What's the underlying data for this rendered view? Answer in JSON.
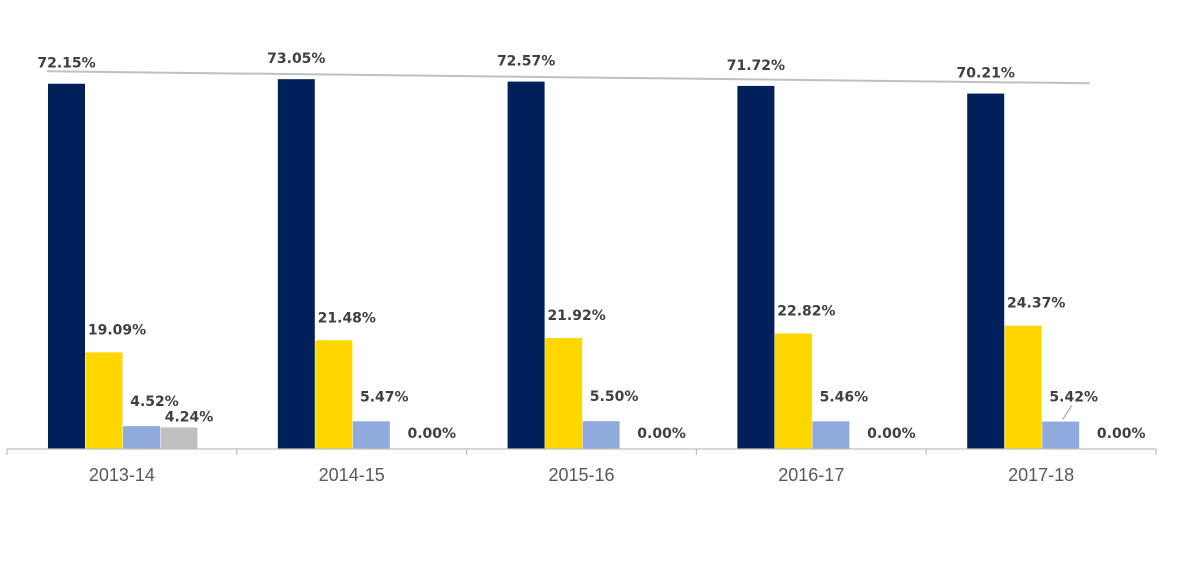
{
  "chart_data": {
    "type": "bar",
    "title": "",
    "xlabel": "",
    "ylabel": "",
    "ylim": [
      0,
      80
    ],
    "grid": false,
    "legend": "none",
    "categories": [
      "2013-14",
      "2014-15",
      "2015-16",
      "2016-17",
      "2017-18"
    ],
    "series": [
      {
        "color": "#00205B",
        "values": [
          72.15,
          73.05,
          72.57,
          71.72,
          70.21
        ],
        "labels": [
          "72.15%",
          "73.05%",
          "72.57%",
          "71.72%",
          "70.21%"
        ]
      },
      {
        "color": "#FFD700",
        "values": [
          19.09,
          21.48,
          21.92,
          22.82,
          24.37
        ],
        "labels": [
          "19.09%",
          "21.48%",
          "21.92%",
          "22.82%",
          "24.37%"
        ]
      },
      {
        "color": "#8FAADC",
        "values": [
          4.52,
          5.47,
          5.5,
          5.46,
          5.42
        ],
        "labels": [
          "4.52%",
          "5.47%",
          "5.50%",
          "5.46%",
          "5.42%"
        ]
      },
      {
        "color": "#BFBFBF",
        "values": [
          4.24,
          0.0,
          0.0,
          0.0,
          0.0
        ],
        "labels": [
          "4.24%",
          "0.00%",
          "0.00%",
          "0.00%",
          "0.00%"
        ]
      }
    ],
    "trendline": {
      "series_index": 0,
      "color": "#BFBFBF"
    }
  }
}
